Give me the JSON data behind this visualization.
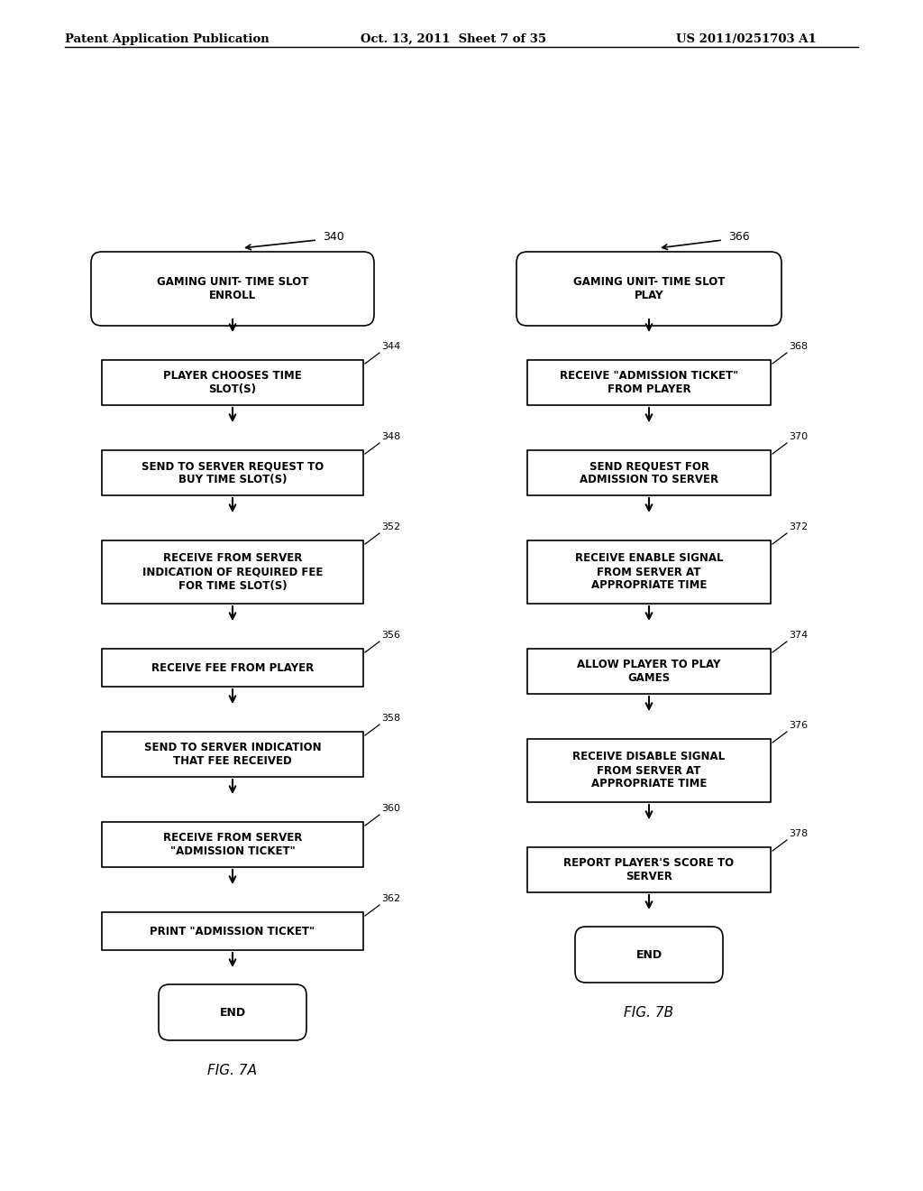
{
  "header_left": "Patent Application Publication",
  "header_mid": "Oct. 13, 2011  Sheet 7 of 35",
  "header_right": "US 2011/0251703 A1",
  "bg_color": "#ffffff",
  "fig7a_label": "FIG. 7A",
  "fig7b_label": "FIG. 7B",
  "flowA": {
    "start_label": "340",
    "title": "GAMING UNIT- TIME SLOT\nENROLL",
    "boxes": [
      {
        "label": "344",
        "text": "PLAYER CHOOSES TIME\nSLOT(S)"
      },
      {
        "label": "348",
        "text": "SEND TO SERVER REQUEST TO\nBUY TIME SLOT(S)"
      },
      {
        "label": "352",
        "text": "RECEIVE FROM SERVER\nINDICATION OF REQUIRED FEE\nFOR TIME SLOT(S)"
      },
      {
        "label": "356",
        "text": "RECEIVE FEE FROM PLAYER"
      },
      {
        "label": "358",
        "text": "SEND TO SERVER INDICATION\nTHAT FEE RECEIVED"
      },
      {
        "label": "360",
        "text": "RECEIVE FROM SERVER\n\"ADMISSION TICKET\""
      },
      {
        "label": "362",
        "text": "PRINT \"ADMISSION TICKET\""
      }
    ],
    "end_text": "END"
  },
  "flowB": {
    "start_label": "366",
    "title": "GAMING UNIT- TIME SLOT\nPLAY",
    "boxes": [
      {
        "label": "368",
        "text": "RECEIVE \"ADMISSION TICKET\"\nFROM PLAYER"
      },
      {
        "label": "370",
        "text": "SEND REQUEST FOR\nADMISSION TO SERVER"
      },
      {
        "label": "372",
        "text": "RECEIVE ENABLE SIGNAL\nFROM SERVER AT\nAPPROPRIATE TIME"
      },
      {
        "label": "374",
        "text": "ALLOW PLAYER TO PLAY\nGAMES"
      },
      {
        "label": "376",
        "text": "RECEIVE DISABLE SIGNAL\nFROM SERVER AT\nAPPROPRIATE TIME"
      },
      {
        "label": "378",
        "text": "REPORT PLAYER'S SCORE TO\nSERVER"
      }
    ],
    "end_text": "END"
  }
}
